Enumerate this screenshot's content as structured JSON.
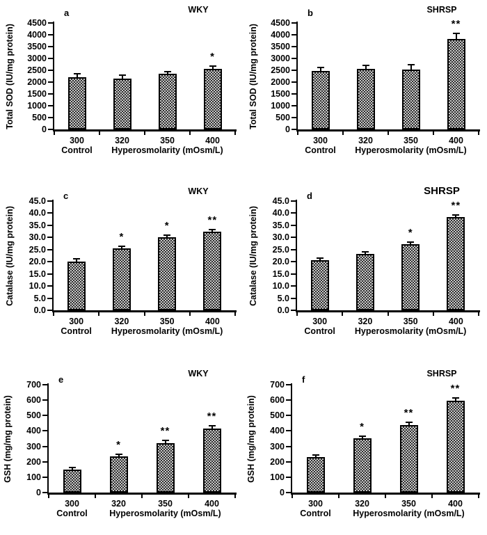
{
  "figure": {
    "background": "#ffffff",
    "colors": {
      "text": "#000000",
      "axis": "#000000",
      "bar_fill": "#cccccc",
      "bar_dot": "#2e2e2e",
      "bar_border": "#000000"
    }
  },
  "chart_data": [
    {
      "type": "bar",
      "letter": "a",
      "group": "WKY",
      "ylabel": "Total SOD (IU/mg protein)",
      "ylim": [
        0,
        4500
      ],
      "ytick_labels": [
        "0",
        "500",
        "1000",
        "1500",
        "2000",
        "2500",
        "3000",
        "3500",
        "4000",
        "4500"
      ],
      "categories": [
        "300",
        "320",
        "350",
        "400"
      ],
      "x_caption_left": "Control",
      "x_caption_right": "Hyperosmolarity (mOsm/L)",
      "values": [
        2200,
        2150,
        2350,
        2550
      ],
      "errors": [
        130,
        110,
        60,
        90
      ],
      "significance": [
        "",
        "",
        "",
        "*"
      ]
    },
    {
      "type": "bar",
      "letter": "b",
      "group": "SHRSP",
      "ylabel": "Total SOD (IU/mg protein)",
      "ylim": [
        0,
        4500
      ],
      "ytick_labels": [
        "0",
        "500",
        "1000",
        "1500",
        "2000",
        "2500",
        "3000",
        "3500",
        "4000",
        "4500"
      ],
      "categories": [
        "300",
        "320",
        "350",
        "400"
      ],
      "x_caption_left": "Control",
      "x_caption_right": "Hyperosmolarity (mOsm/L)",
      "values": [
        2470,
        2570,
        2530,
        3830
      ],
      "errors": [
        120,
        110,
        180,
        200
      ],
      "significance": [
        "",
        "",
        "",
        "**"
      ]
    },
    {
      "type": "bar",
      "letter": "c",
      "group": "WKY",
      "ylabel": "Catalase (IU/mg protein)",
      "ylim": [
        0,
        45
      ],
      "ytick_labels": [
        "0.0",
        "5.0",
        "10.0",
        "15.0",
        "20.0",
        "25.0",
        "30.0",
        "35.0",
        "40.0",
        "45.0"
      ],
      "categories": [
        "300",
        "320",
        "350",
        "400"
      ],
      "x_caption_left": "Control",
      "x_caption_right": "Hyperosmolarity (mOsm/L)",
      "values": [
        20.0,
        25.5,
        30.0,
        32.3
      ],
      "errors": [
        0.9,
        0.5,
        0.7,
        0.6
      ],
      "significance": [
        "",
        "*",
        "*",
        "**"
      ]
    },
    {
      "type": "bar",
      "letter": "d",
      "group": "SHRSP",
      "ylabel": "Catalase (IU/mg protein)",
      "ylim": [
        0,
        45
      ],
      "ytick_labels": [
        "0.0",
        "5.0",
        "10.0",
        "15.0",
        "20.0",
        "25.0",
        "30.0",
        "35.0",
        "40.0",
        "45.0"
      ],
      "categories": [
        "300",
        "320",
        "350",
        "400"
      ],
      "x_caption_left": "Control",
      "x_caption_right": "Hyperosmolarity (mOsm/L)",
      "values": [
        20.5,
        23.2,
        27.1,
        38.3
      ],
      "errors": [
        0.4,
        0.4,
        0.5,
        0.5
      ],
      "significance": [
        "",
        "",
        "*",
        "**"
      ]
    },
    {
      "type": "bar",
      "letter": "e",
      "group": "WKY",
      "ylabel": "GSH (mg/mg protein)",
      "ylim": [
        0,
        700
      ],
      "ytick_labels": [
        "0",
        "100",
        "200",
        "300",
        "400",
        "500",
        "600",
        "700"
      ],
      "categories": [
        "300",
        "320",
        "350",
        "400"
      ],
      "x_caption_left": "Control",
      "x_caption_right": "Hyperosmolarity (mOsm/L)",
      "values": [
        148,
        234,
        321,
        417
      ],
      "errors": [
        12,
        9,
        10,
        10
      ],
      "significance": [
        "",
        "*",
        "**",
        "**"
      ]
    },
    {
      "type": "bar",
      "letter": "f",
      "group": "SHRSP",
      "ylabel": "GSH (mg/mg protein)",
      "ylim": [
        0,
        700
      ],
      "ytick_labels": [
        "0",
        "100",
        "200",
        "300",
        "400",
        "500",
        "600",
        "700"
      ],
      "categories": [
        "300",
        "320",
        "350",
        "400"
      ],
      "x_caption_left": "Control",
      "x_caption_right": "Hyperosmolarity (mOsm/L)",
      "values": [
        230,
        352,
        440,
        597
      ],
      "errors": [
        10,
        8,
        10,
        12
      ],
      "significance": [
        "",
        "*",
        "**",
        "**"
      ]
    }
  ]
}
